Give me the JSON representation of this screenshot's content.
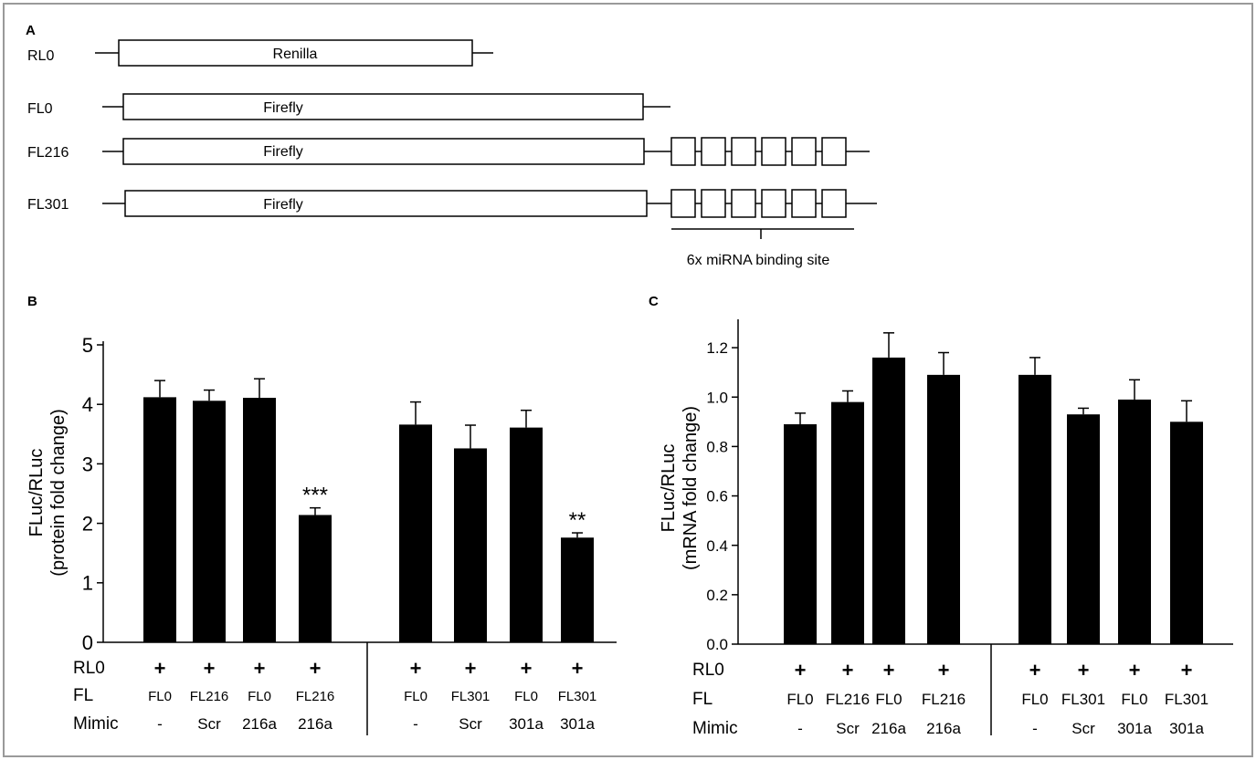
{
  "panel_a": {
    "label": "A",
    "constructs": [
      {
        "name": "RL0",
        "box_label": "Renilla",
        "sites": 0
      },
      {
        "name": "FL0",
        "box_label": "Firefly",
        "sites": 0
      },
      {
        "name": "FL216",
        "box_label": "Firefly",
        "sites": 6
      },
      {
        "name": "FL301",
        "box_label": "Firefly",
        "sites": 6
      }
    ],
    "site_label": "6x miRNA binding site"
  },
  "chart_data": [
    {
      "type": "bar",
      "panel_label": "B",
      "ylabel_line1": "FLuc/RLuc",
      "ylabel_line2": "(protein fold change)",
      "ylim": [
        0,
        5
      ],
      "yticks": [
        "0",
        "1",
        "2",
        "3",
        "4",
        "5"
      ],
      "ytick_values": [
        0,
        1,
        2,
        3,
        4,
        5
      ],
      "values": [
        4.12,
        4.06,
        4.11,
        2.14,
        3.66,
        3.26,
        3.61,
        1.76
      ],
      "errors": [
        0.28,
        0.18,
        0.32,
        0.12,
        0.38,
        0.39,
        0.29,
        0.08
      ],
      "significance": [
        "",
        "",
        "",
        "***",
        "",
        "",
        "",
        "**"
      ],
      "row_labels": [
        "RL0",
        "FL",
        "Mimic"
      ],
      "rl0": [
        "+",
        "+",
        "+",
        "+",
        "+",
        "+",
        "+",
        "+"
      ],
      "fl": [
        "FL0",
        "FL216",
        "FL0",
        "FL216",
        "FL0",
        "FL301",
        "FL0",
        "FL301"
      ],
      "mimic": [
        "-",
        "Scr",
        "216a",
        "216a",
        "-",
        "Scr",
        "301a",
        "301a"
      ],
      "grid": false
    },
    {
      "type": "bar",
      "panel_label": "C",
      "ylabel_line1": "FLuc/RLuc",
      "ylabel_line2": "(mRNA fold change)",
      "ylim": [
        0,
        1.3
      ],
      "yticks": [
        "0.0",
        "0.2",
        "0.4",
        "0.6",
        "0.8",
        "1.0",
        "1.2"
      ],
      "ytick_values": [
        0,
        0.2,
        0.4,
        0.6,
        0.8,
        1.0,
        1.2
      ],
      "values": [
        0.89,
        0.98,
        1.16,
        1.09,
        1.09,
        0.93,
        0.99,
        0.9
      ],
      "errors": [
        0.045,
        0.045,
        0.1,
        0.09,
        0.07,
        0.025,
        0.08,
        0.085
      ],
      "significance": [
        "",
        "",
        "",
        "",
        "",
        "",
        "",
        ""
      ],
      "row_labels": [
        "RL0",
        "FL",
        "Mimic"
      ],
      "rl0": [
        "+",
        "+",
        "+",
        "+",
        "+",
        "+",
        "+",
        "+"
      ],
      "fl": [
        "FL0",
        "FL216",
        "FL0",
        "FL216",
        "FL0",
        "FL301",
        "FL0",
        "FL301"
      ],
      "mimic": [
        "-",
        "Scr",
        "216a",
        "216a",
        "-",
        "Scr",
        "301a",
        "301a"
      ],
      "grid": false
    }
  ]
}
